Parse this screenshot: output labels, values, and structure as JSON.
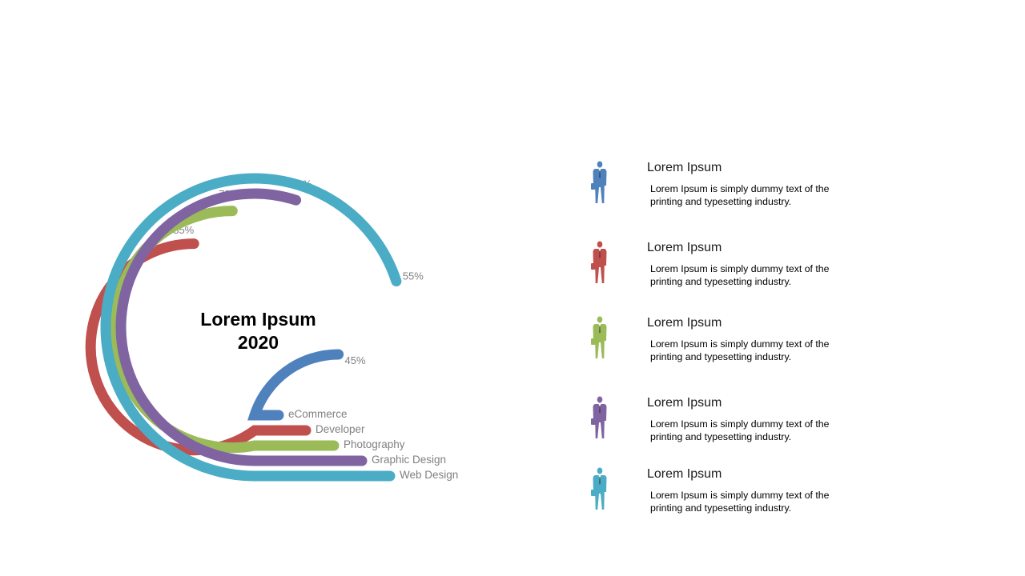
{
  "chart_data": {
    "type": "radial-bar",
    "center_title": [
      "Lorem Ipsum",
      "2020"
    ],
    "series": [
      {
        "name": "eCommerce",
        "value": 45,
        "label": "45%",
        "color": "#4F81BD"
      },
      {
        "name": "Developer",
        "value": 85,
        "label": "85%",
        "color": "#C0504D"
      },
      {
        "name": "Photography",
        "value": 78,
        "label": "78%",
        "color": "#9BBB59"
      },
      {
        "name": "Graphic Design",
        "value": 70,
        "label": "70%",
        "color": "#8064A2"
      },
      {
        "name": "Web Design",
        "value": 55,
        "label": "55%",
        "color": "#4BACC6"
      }
    ]
  },
  "legend": [
    {
      "title": "Lorem Ipsum",
      "text": "Lorem Ipsum is simply dummy text of the printing and typesetting industry.",
      "color": "#4F81BD",
      "icon": "businessman-icon"
    },
    {
      "title": "Lorem Ipsum",
      "text": "Lorem Ipsum is simply dummy text of the printing and typesetting industry.",
      "color": "#C0504D",
      "icon": "businessman-icon"
    },
    {
      "title": "Lorem Ipsum",
      "text": "Lorem Ipsum is simply dummy text of the printing and typesetting industry.",
      "color": "#9BBB59",
      "icon": "businessman-icon"
    },
    {
      "title": "Lorem Ipsum",
      "text": "Lorem Ipsum is simply dummy text of the printing and typesetting industry.",
      "color": "#8064A2",
      "icon": "businessman-icon"
    },
    {
      "title": "Lorem Ipsum",
      "text": "Lorem Ipsum is simply dummy text of the printing and typesetting industry.",
      "color": "#4BACC6",
      "icon": "businessman-icon"
    }
  ]
}
